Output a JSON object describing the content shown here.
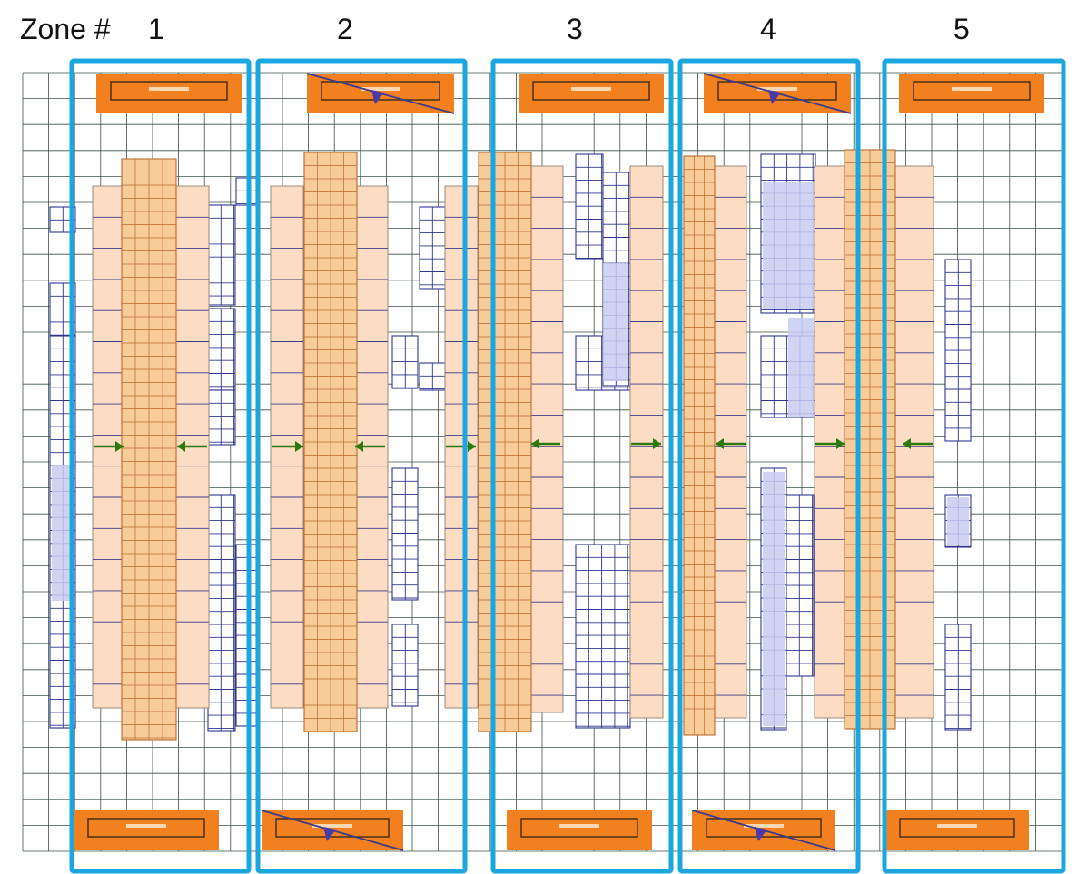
{
  "header": {
    "prefix": "Zone #",
    "zones": [
      "1",
      "2",
      "3",
      "4",
      "5"
    ]
  },
  "colors": {
    "zone_border": "#1aa7e0",
    "grid_line": "#3d5148",
    "block_fill": "#fddcc4",
    "block_border": "#3b3b8c",
    "column_fill": "#f7cc98",
    "column_border": "#b86a2c",
    "blue_mesh": "#2f3590",
    "blue_fill": "#c9cbf0",
    "orange_box": "#f3801f",
    "arrow": "#2b7a0b",
    "stripe": "#3b3b8c"
  },
  "icons": {
    "arrow_left": "arrow-left-icon",
    "arrow_right": "arrow-right-icon",
    "cross_mark": "diagonal-line-marker-icon"
  },
  "zone_blocks": [
    {
      "zone": "1",
      "top_box_crossed": false,
      "bottom_box_crossed": false
    },
    {
      "zone": "2",
      "top_box_crossed": true,
      "bottom_box_crossed": true
    },
    {
      "zone": "3",
      "top_box_crossed": false,
      "bottom_box_crossed": false
    },
    {
      "zone": "4",
      "top_box_crossed": true,
      "bottom_box_crossed": true
    },
    {
      "zone": "5",
      "top_box_crossed": false,
      "bottom_box_crossed": false
    }
  ]
}
